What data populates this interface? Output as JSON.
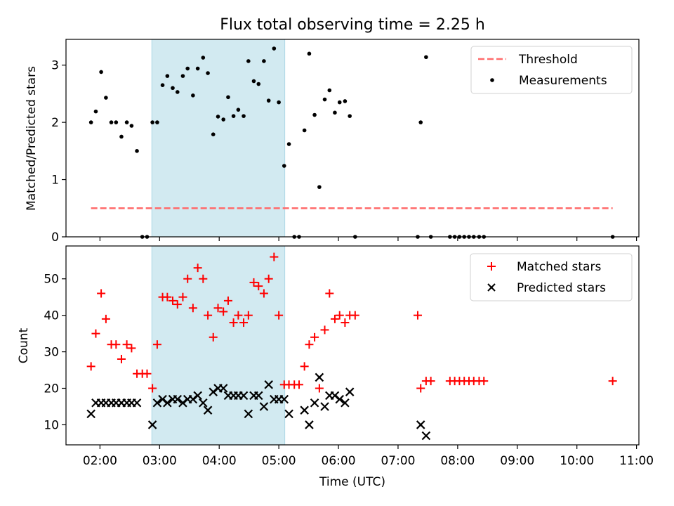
{
  "title": "Flux total observing time = 2.25 h",
  "colors": {
    "threshold": "#ff6b6b",
    "measurement": "#000000",
    "matched": "#ff0000",
    "predicted": "#000000",
    "shade": "#add8e6"
  },
  "chart_data": [
    {
      "type": "scatter",
      "ylabel": "Matched/Predicted stars",
      "xlim": [
        1.43,
        11.04
      ],
      "ylim": [
        0,
        3.45
      ],
      "yticks": [
        0,
        1,
        2,
        3
      ],
      "shaded_span": [
        2.87,
        5.1
      ],
      "legend": {
        "placement": "top-right",
        "entries": [
          "Threshold",
          "Measurements"
        ]
      },
      "series": [
        {
          "name": "Threshold",
          "kind": "dashed-line",
          "x": [
            1.85,
            10.6
          ],
          "y": [
            0.5,
            0.5
          ]
        },
        {
          "name": "Measurements",
          "kind": "points",
          "data": [
            [
              1.85,
              2.0
            ],
            [
              1.93,
              2.19
            ],
            [
              2.02,
              2.88
            ],
            [
              2.1,
              2.43
            ],
            [
              2.19,
              2.0
            ],
            [
              2.27,
              2.0
            ],
            [
              2.36,
              1.75
            ],
            [
              2.45,
              2.0
            ],
            [
              2.53,
              1.94
            ],
            [
              2.62,
              1.5
            ],
            [
              2.71,
              0.0
            ],
            [
              2.79,
              0.0
            ],
            [
              2.88,
              2.0
            ],
            [
              2.96,
              2.0
            ],
            [
              3.05,
              2.65
            ],
            [
              3.13,
              2.81
            ],
            [
              3.22,
              2.6
            ],
            [
              3.3,
              2.53
            ],
            [
              3.39,
              2.81
            ],
            [
              3.47,
              2.94
            ],
            [
              3.56,
              2.47
            ],
            [
              3.64,
              2.94
            ],
            [
              3.73,
              3.13
            ],
            [
              3.81,
              2.86
            ],
            [
              3.9,
              1.79
            ],
            [
              3.98,
              2.1
            ],
            [
              4.07,
              2.05
            ],
            [
              4.15,
              2.44
            ],
            [
              4.24,
              2.11
            ],
            [
              4.32,
              2.22
            ],
            [
              4.41,
              2.11
            ],
            [
              4.49,
              3.07
            ],
            [
              4.58,
              2.72
            ],
            [
              4.66,
              2.67
            ],
            [
              4.75,
              3.07
            ],
            [
              4.83,
              2.38
            ],
            [
              4.92,
              3.29
            ],
            [
              5.0,
              2.35
            ],
            [
              5.09,
              1.24
            ],
            [
              5.17,
              1.62
            ],
            [
              5.26,
              0.0
            ],
            [
              5.34,
              0.0
            ],
            [
              5.43,
              1.86
            ],
            [
              5.51,
              3.2
            ],
            [
              5.6,
              2.13
            ],
            [
              5.68,
              0.87
            ],
            [
              5.77,
              2.4
            ],
            [
              5.85,
              2.56
            ],
            [
              5.94,
              2.17
            ],
            [
              6.02,
              2.35
            ],
            [
              6.11,
              2.37
            ],
            [
              6.19,
              2.11
            ],
            [
              6.28,
              0.0
            ],
            [
              7.33,
              0.0
            ],
            [
              7.38,
              2.0
            ],
            [
              7.47,
              3.14
            ],
            [
              7.55,
              0.0
            ],
            [
              7.87,
              0.0
            ],
            [
              7.95,
              0.0
            ],
            [
              8.03,
              0.0
            ],
            [
              8.11,
              0.0
            ],
            [
              8.19,
              0.0
            ],
            [
              8.27,
              0.0
            ],
            [
              8.36,
              0.0
            ],
            [
              8.44,
              0.0
            ],
            [
              10.6,
              0.0
            ]
          ]
        }
      ]
    },
    {
      "type": "scatter",
      "xlabel": "Time (UTC)",
      "ylabel": "Count",
      "xlim": [
        1.43,
        11.04
      ],
      "ylim": [
        4.5,
        59
      ],
      "yticks": [
        10,
        20,
        30,
        40,
        50
      ],
      "xticks": [
        2,
        3,
        4,
        5,
        6,
        7,
        8,
        9,
        10,
        11
      ],
      "xticklabels": [
        "02:00",
        "03:00",
        "04:00",
        "05:00",
        "06:00",
        "07:00",
        "08:00",
        "09:00",
        "10:00",
        "11:00"
      ],
      "shaded_span": [
        2.87,
        5.1
      ],
      "legend": {
        "placement": "top-right",
        "entries": [
          "Matched stars",
          "Predicted stars"
        ]
      },
      "series": [
        {
          "name": "Matched stars",
          "marker": "plus",
          "data": [
            [
              1.85,
              26
            ],
            [
              1.93,
              35
            ],
            [
              2.02,
              46
            ],
            [
              2.1,
              39
            ],
            [
              2.19,
              32
            ],
            [
              2.27,
              32
            ],
            [
              2.36,
              28
            ],
            [
              2.45,
              32
            ],
            [
              2.53,
              31
            ],
            [
              2.62,
              24
            ],
            [
              2.71,
              24
            ],
            [
              2.79,
              24
            ],
            [
              2.88,
              20
            ],
            [
              2.96,
              32
            ],
            [
              3.05,
              45
            ],
            [
              3.13,
              45
            ],
            [
              3.22,
              44
            ],
            [
              3.3,
              43
            ],
            [
              3.39,
              45
            ],
            [
              3.47,
              50
            ],
            [
              3.56,
              42
            ],
            [
              3.64,
              53
            ],
            [
              3.73,
              50
            ],
            [
              3.81,
              40
            ],
            [
              3.9,
              34
            ],
            [
              3.98,
              42
            ],
            [
              4.07,
              41
            ],
            [
              4.15,
              44
            ],
            [
              4.24,
              38
            ],
            [
              4.32,
              40
            ],
            [
              4.41,
              38
            ],
            [
              4.49,
              40
            ],
            [
              4.58,
              49
            ],
            [
              4.66,
              48
            ],
            [
              4.75,
              46
            ],
            [
              4.83,
              50
            ],
            [
              4.92,
              56
            ],
            [
              5.0,
              40
            ],
            [
              5.09,
              21
            ],
            [
              5.17,
              21
            ],
            [
              5.26,
              21
            ],
            [
              5.34,
              21
            ],
            [
              5.43,
              26
            ],
            [
              5.51,
              32
            ],
            [
              5.6,
              34
            ],
            [
              5.68,
              20
            ],
            [
              5.77,
              36
            ],
            [
              5.85,
              46
            ],
            [
              5.94,
              39
            ],
            [
              6.02,
              40
            ],
            [
              6.11,
              38
            ],
            [
              6.19,
              40
            ],
            [
              6.28,
              40
            ],
            [
              7.33,
              40
            ],
            [
              7.38,
              20
            ],
            [
              7.47,
              22
            ],
            [
              7.55,
              22
            ],
            [
              7.87,
              22
            ],
            [
              7.95,
              22
            ],
            [
              8.03,
              22
            ],
            [
              8.11,
              22
            ],
            [
              8.19,
              22
            ],
            [
              8.27,
              22
            ],
            [
              8.36,
              22
            ],
            [
              8.44,
              22
            ],
            [
              10.6,
              22
            ]
          ]
        },
        {
          "name": "Predicted stars",
          "marker": "x",
          "data": [
            [
              1.85,
              13
            ],
            [
              1.93,
              16
            ],
            [
              2.02,
              16
            ],
            [
              2.1,
              16
            ],
            [
              2.19,
              16
            ],
            [
              2.27,
              16
            ],
            [
              2.36,
              16
            ],
            [
              2.45,
              16
            ],
            [
              2.53,
              16
            ],
            [
              2.62,
              16
            ],
            [
              2.88,
              10
            ],
            [
              2.96,
              16
            ],
            [
              3.05,
              17
            ],
            [
              3.13,
              16
            ],
            [
              3.22,
              17
            ],
            [
              3.3,
              17
            ],
            [
              3.39,
              16
            ],
            [
              3.47,
              17
            ],
            [
              3.56,
              17
            ],
            [
              3.64,
              18
            ],
            [
              3.73,
              16
            ],
            [
              3.81,
              14
            ],
            [
              3.9,
              19
            ],
            [
              3.98,
              20
            ],
            [
              4.07,
              20
            ],
            [
              4.15,
              18
            ],
            [
              4.24,
              18
            ],
            [
              4.32,
              18
            ],
            [
              4.41,
              18
            ],
            [
              4.49,
              13
            ],
            [
              4.58,
              18
            ],
            [
              4.66,
              18
            ],
            [
              4.75,
              15
            ],
            [
              4.83,
              21
            ],
            [
              4.92,
              17
            ],
            [
              5.0,
              17
            ],
            [
              5.09,
              17
            ],
            [
              5.17,
              13
            ],
            [
              5.43,
              14
            ],
            [
              5.51,
              10
            ],
            [
              5.6,
              16
            ],
            [
              5.68,
              23
            ],
            [
              5.77,
              15
            ],
            [
              5.85,
              18
            ],
            [
              5.94,
              18
            ],
            [
              6.02,
              17
            ],
            [
              6.11,
              16
            ],
            [
              6.19,
              19
            ],
            [
              7.38,
              10
            ],
            [
              7.47,
              7
            ]
          ]
        }
      ]
    }
  ]
}
